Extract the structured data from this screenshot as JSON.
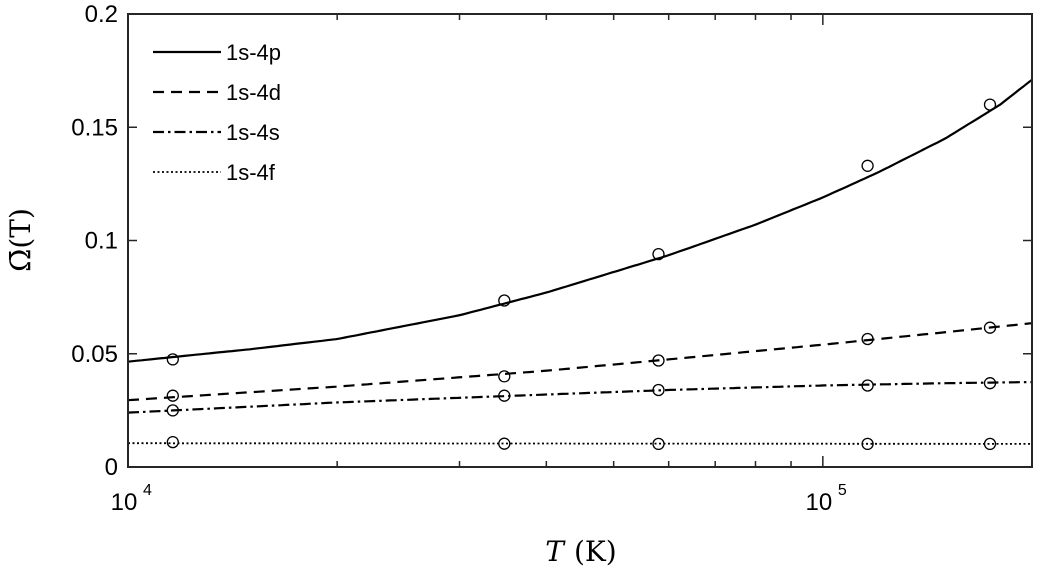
{
  "chart_data": {
    "type": "line",
    "xlabel": "T (K)",
    "xlabel_var": "T",
    "xlabel_unit": "(K)",
    "ylabel": "Ω̄(T)",
    "xscale": "log",
    "xlim": [
      10000,
      200000
    ],
    "ylim": [
      0,
      0.2
    ],
    "x_ticks": [
      {
        "value": 10000,
        "base": "10",
        "exp": "4"
      },
      {
        "value": 100000,
        "base": "10",
        "exp": "5"
      }
    ],
    "y_ticks": [
      {
        "value": 0,
        "label": "0"
      },
      {
        "value": 0.05,
        "label": "0.05"
      },
      {
        "value": 0.1,
        "label": "0.1"
      },
      {
        "value": 0.15,
        "label": "0.15"
      },
      {
        "value": 0.2,
        "label": "0.2"
      }
    ],
    "legend_position": "top-left",
    "grid": false,
    "series": [
      {
        "name": "1s-4p",
        "line_style": "solid",
        "curve": {
          "x": [
            10000,
            12000,
            15000,
            20000,
            30000,
            40000,
            60000,
            80000,
            100000,
            120000,
            150000,
            180000,
            200000
          ],
          "y": [
            0.0465,
            0.049,
            0.052,
            0.0565,
            0.067,
            0.077,
            0.0935,
            0.107,
            0.119,
            0.13,
            0.145,
            0.16,
            0.171
          ]
        },
        "points": {
          "x": [
            11600,
            34800,
            58000,
            116000,
            174000
          ],
          "y": [
            0.0475,
            0.0735,
            0.094,
            0.133,
            0.16
          ]
        }
      },
      {
        "name": "1s-4d",
        "line_style": "dashed",
        "curve": {
          "x": [
            10000,
            20000,
            40000,
            60000,
            100000,
            150000,
            200000
          ],
          "y": [
            0.0295,
            0.0355,
            0.0425,
            0.0475,
            0.054,
            0.0595,
            0.0635
          ]
        },
        "points": {
          "x": [
            11600,
            34800,
            58000,
            116000,
            174000
          ],
          "y": [
            0.0315,
            0.04,
            0.047,
            0.0565,
            0.0615
          ]
        }
      },
      {
        "name": "1s-4s",
        "line_style": "dashdot",
        "curve": {
          "x": [
            10000,
            20000,
            40000,
            60000,
            100000,
            150000,
            200000
          ],
          "y": [
            0.024,
            0.0285,
            0.032,
            0.034,
            0.036,
            0.037,
            0.0375
          ]
        },
        "points": {
          "x": [
            11600,
            34800,
            58000,
            116000,
            174000
          ],
          "y": [
            0.025,
            0.0315,
            0.034,
            0.036,
            0.037
          ]
        }
      },
      {
        "name": "1s-4f",
        "line_style": "dotted",
        "curve": {
          "x": [
            10000,
            200000
          ],
          "y": [
            0.0105,
            0.0102
          ]
        },
        "points": {
          "x": [
            11600,
            34800,
            58000,
            116000,
            174000
          ],
          "y": [
            0.011,
            0.0103,
            0.0102,
            0.0102,
            0.0102
          ]
        }
      }
    ]
  }
}
